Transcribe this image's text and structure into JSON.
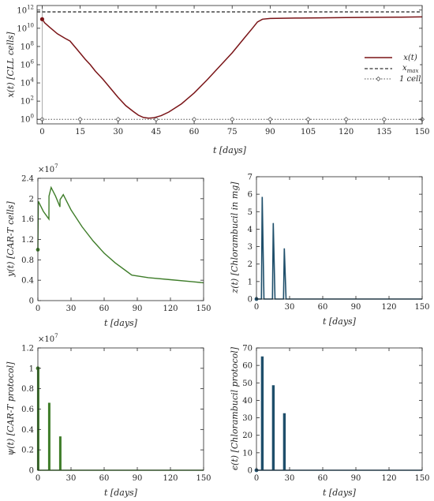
{
  "chart_data": [
    {
      "id": "p1",
      "type": "line",
      "x_scale": "linear",
      "y_scale": "log",
      "xlabel": "t [days]",
      "ylabel": "x(t) [CLL cells]",
      "xlim": [
        -2,
        150
      ],
      "ylim_exponent": [
        -0.5,
        12.5
      ],
      "x_ticks": [
        0,
        15,
        30,
        45,
        60,
        75,
        90,
        105,
        120,
        135,
        150
      ],
      "y_ticks": [
        {
          "value": 0,
          "label": "10",
          "exp": "0"
        },
        {
          "value": 2,
          "label": "10",
          "exp": "2"
        },
        {
          "value": 4,
          "label": "10",
          "exp": "4"
        },
        {
          "value": 6,
          "label": "10",
          "exp": "6"
        },
        {
          "value": 8,
          "label": "10",
          "exp": "8"
        },
        {
          "value": 10,
          "label": "10",
          "exp": "10"
        },
        {
          "value": 12,
          "label": "10",
          "exp": "12"
        }
      ],
      "legend_position": "center-right",
      "legend": [
        "x(t)",
        "x_max",
        "1 cell"
      ],
      "colors": {
        "x": "#7a1417",
        "xmax": "#333333",
        "one": "#555555"
      },
      "series": [
        {
          "name": "x(t)",
          "x": [
            0,
            1,
            3,
            6,
            9,
            11,
            14,
            17,
            19,
            21,
            24,
            27,
            30,
            33,
            36,
            38,
            40,
            42,
            44,
            47,
            50,
            55,
            60,
            65,
            70,
            75,
            80,
            83,
            85,
            87,
            90,
            100,
            110,
            120,
            130,
            140,
            150
          ],
          "log10_y": [
            11.0,
            10.6,
            10.1,
            9.4,
            8.9,
            8.6,
            7.6,
            6.6,
            6.0,
            5.3,
            4.4,
            3.4,
            2.4,
            1.5,
            0.85,
            0.45,
            0.2,
            0.13,
            0.17,
            0.4,
            0.8,
            1.7,
            2.9,
            4.3,
            5.8,
            7.3,
            9.0,
            10.0,
            10.7,
            11.0,
            11.08,
            11.12,
            11.15,
            11.18,
            11.2,
            11.22,
            11.25
          ]
        },
        {
          "name": "x_max",
          "x": [
            -2,
            150
          ],
          "log10_y": [
            11.8,
            11.8
          ]
        },
        {
          "name": "1 cell",
          "x": [
            -2,
            150
          ],
          "log10_y": [
            0,
            0
          ],
          "marker_x": [
            0,
            15,
            30,
            45,
            60,
            75,
            90,
            105,
            120,
            135,
            150
          ]
        }
      ],
      "start_marker": {
        "x": 0,
        "log10_y": 11.0
      }
    },
    {
      "id": "p2",
      "type": "line",
      "xlabel": "t [days]",
      "ylabel": "y(t) [CAR-T cells]",
      "multiplier": "×10",
      "multiplier_exp": "7",
      "xlim": [
        0,
        150
      ],
      "ylim": [
        0,
        2.4
      ],
      "x_ticks": [
        0,
        30,
        60,
        90,
        120,
        150
      ],
      "y_ticks": [
        0,
        0.4,
        0.8,
        1.2,
        1.6,
        2,
        2.4
      ],
      "y_tick_labels": [
        "0",
        "0.4",
        "0.8",
        "1.2",
        "1.6",
        "2",
        "2.4"
      ],
      "color": "#3f7d2a",
      "series": [
        {
          "x": [
            0,
            0.4,
            2,
            5,
            10,
            10.05,
            12,
            16,
            20,
            20.05,
            23,
            30,
            40,
            50,
            60,
            70,
            80,
            85,
            100,
            120,
            140,
            150
          ],
          "y": [
            1.0,
            1.95,
            1.88,
            1.75,
            1.6,
            2.05,
            2.22,
            2.05,
            1.84,
            1.98,
            2.08,
            1.78,
            1.45,
            1.17,
            0.93,
            0.74,
            0.58,
            0.5,
            0.45,
            0.41,
            0.37,
            0.35
          ]
        }
      ],
      "start_marker": {
        "x": 0,
        "y": 1.0
      }
    },
    {
      "id": "p3",
      "type": "line",
      "xlabel": "t [days]",
      "ylabel": "z(t) [Chlorambucil in mg]",
      "xlim": [
        0,
        150
      ],
      "ylim": [
        0,
        7
      ],
      "x_ticks": [
        0,
        30,
        60,
        90,
        120,
        150
      ],
      "y_ticks": [
        0,
        1,
        2,
        3,
        4,
        5,
        6,
        7
      ],
      "color": "#1f4f6b",
      "pulses": [
        {
          "start": 4.5,
          "peak_x": 5.2,
          "peak": 5.85,
          "end": 6.8
        },
        {
          "start": 14.5,
          "peak_x": 15.2,
          "peak": 4.35,
          "end": 16.8
        },
        {
          "start": 24.5,
          "peak_x": 25.2,
          "peak": 2.9,
          "end": 26.8
        }
      ],
      "start_marker": {
        "x": 0,
        "y": 0
      }
    },
    {
      "id": "p4",
      "type": "line",
      "xlabel": "t [days]",
      "ylabel": "ψ(t) [CAR-T protocol]",
      "multiplier": "×10",
      "multiplier_exp": "7",
      "xlim": [
        0,
        150
      ],
      "ylim": [
        0,
        1.2
      ],
      "x_ticks": [
        0,
        30,
        60,
        90,
        120,
        150
      ],
      "y_ticks": [
        0,
        0.2,
        0.4,
        0.6,
        0.8,
        1,
        1.2
      ],
      "y_tick_labels": [
        "0",
        "0.2",
        "0.4",
        "0.6",
        "0.8",
        "1",
        "1.2"
      ],
      "color": "#3f7d2a",
      "spikes": [
        {
          "x": 0,
          "y": 1.0
        },
        {
          "x": 10,
          "y": 0.66
        },
        {
          "x": 20,
          "y": 0.33
        }
      ],
      "start_marker": {
        "x": 0,
        "y": 1.0
      }
    },
    {
      "id": "p5",
      "type": "line",
      "xlabel": "t [days]",
      "ylabel": "ϵ(t) [Chlorambucil protocol]",
      "xlim": [
        0,
        150
      ],
      "ylim": [
        0,
        70
      ],
      "x_ticks": [
        0,
        30,
        60,
        90,
        120,
        150
      ],
      "y_ticks": [
        0,
        10,
        20,
        30,
        40,
        50,
        60,
        70
      ],
      "color": "#1f4f6b",
      "spikes": [
        {
          "x": 5,
          "y": 65
        },
        {
          "x": 15,
          "y": 48.5
        },
        {
          "x": 25,
          "y": 32.5
        }
      ],
      "start_marker": {
        "x": 0,
        "y": 0
      }
    }
  ]
}
